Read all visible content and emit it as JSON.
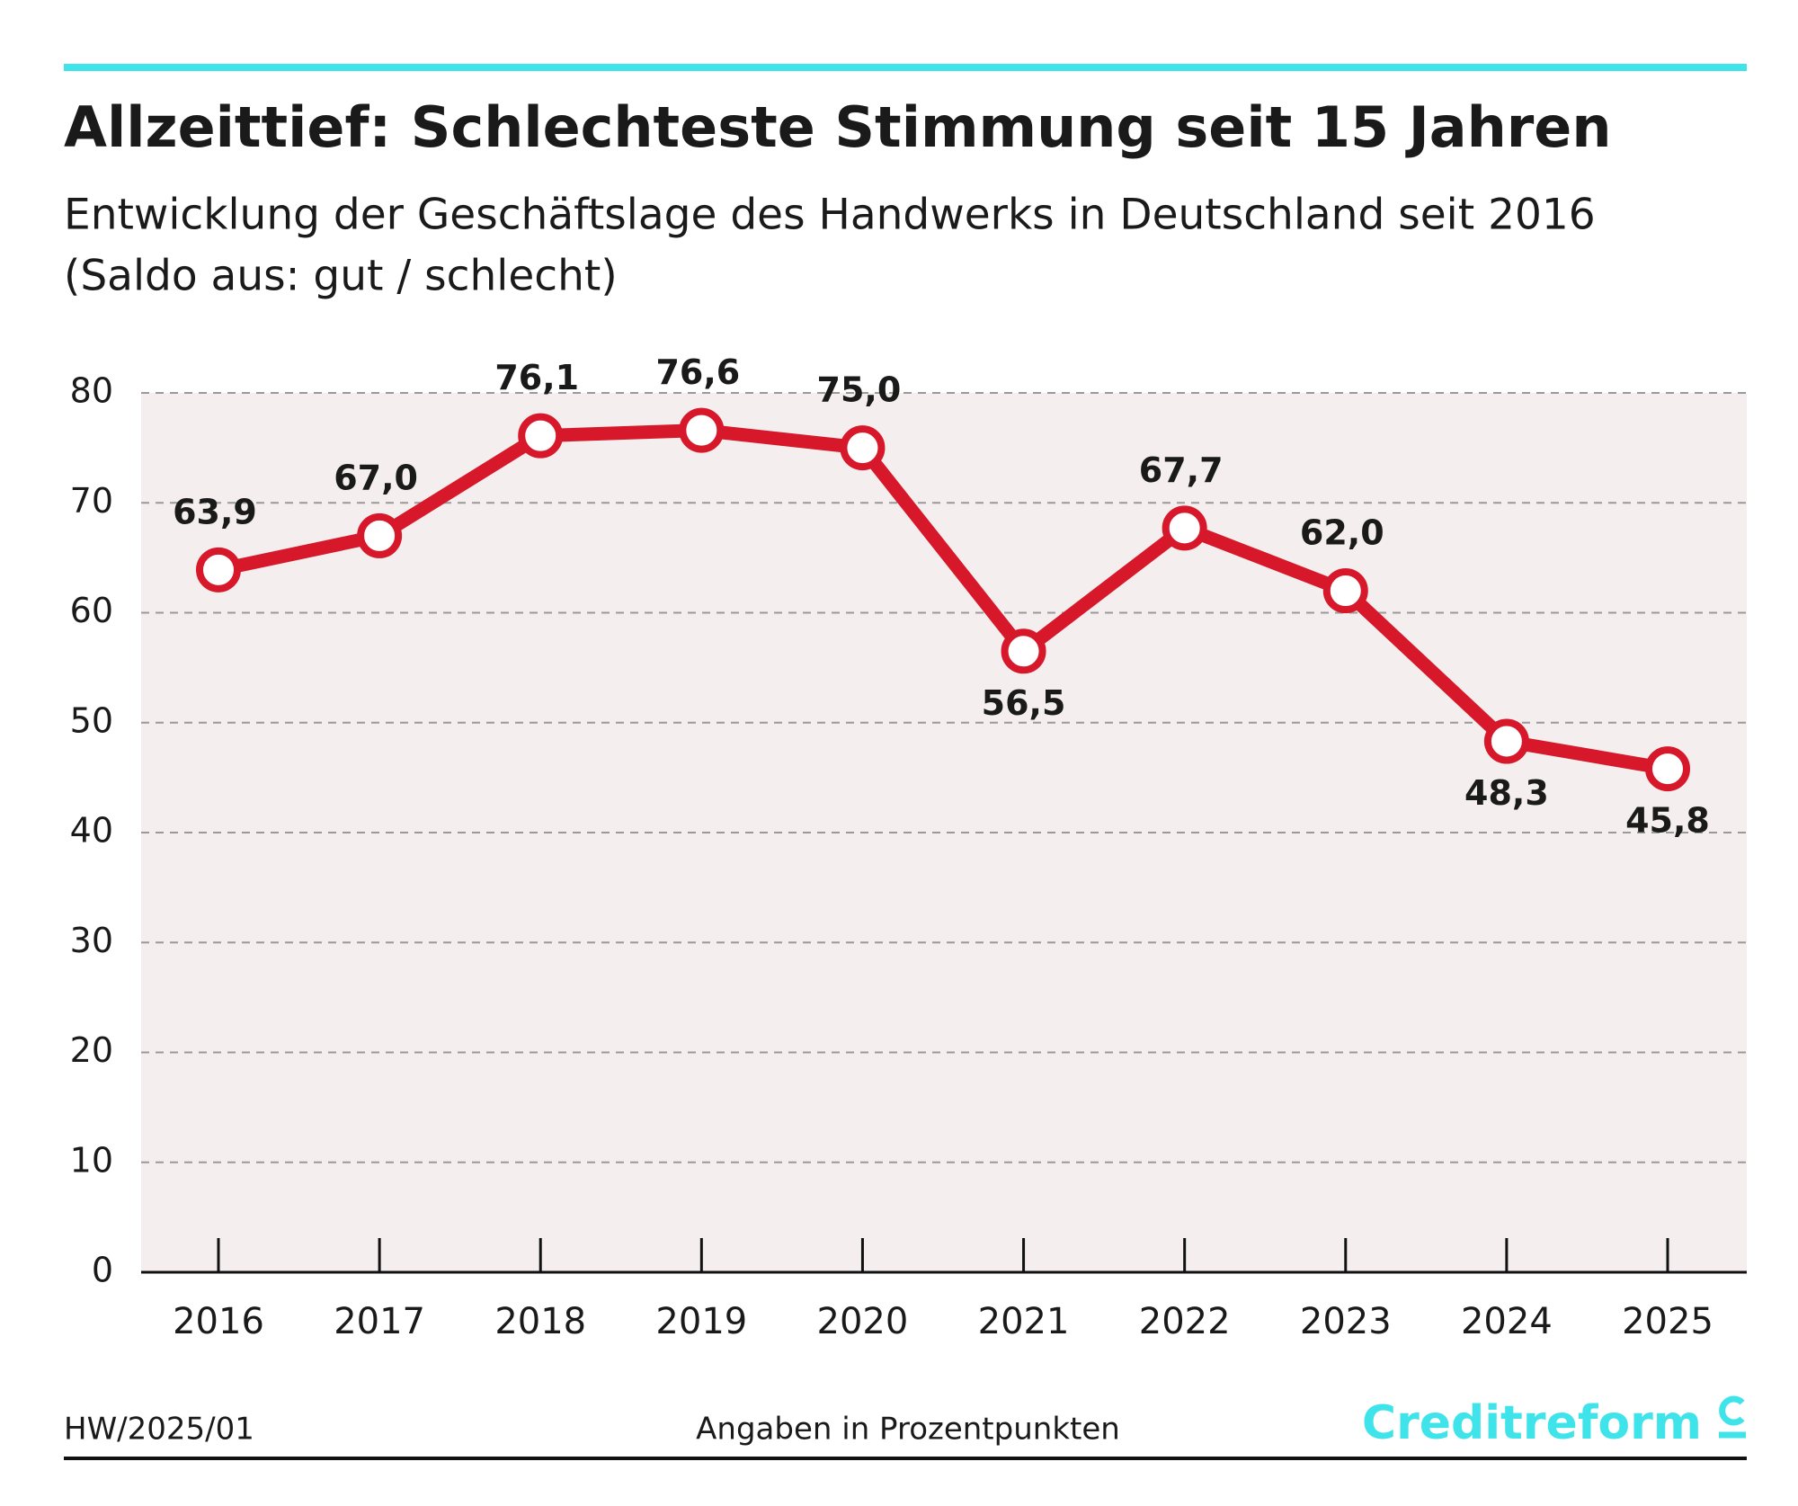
{
  "chart_data": {
    "type": "line",
    "title": "Allzeittief: Schlechteste Stimmung seit 15 Jahren",
    "subtitle": [
      "Entwicklung der Geschäftslage des Handwerks in Deutschland seit 2016",
      "(Saldo aus: gut / schlecht)"
    ],
    "categories": [
      "2016",
      "2017",
      "2018",
      "2019",
      "2020",
      "2021",
      "2022",
      "2023",
      "2024",
      "2025"
    ],
    "values": [
      63.9,
      67.0,
      76.1,
      76.6,
      75.0,
      56.5,
      67.7,
      62.0,
      48.3,
      45.8
    ],
    "value_labels": [
      "63,9",
      "67,0",
      "76,1",
      "76,6",
      "75,0",
      "56,5",
      "67,7",
      "62,0",
      "48,3",
      "45,8"
    ],
    "color": "#d7182a",
    "ylim": [
      0,
      80
    ],
    "yticks": [
      0,
      10,
      20,
      30,
      40,
      50,
      60,
      70,
      80
    ],
    "grid": true,
    "source": "HW/2025/01",
    "note": "Angaben in Prozentpunkten",
    "brand": "Creditreform"
  }
}
